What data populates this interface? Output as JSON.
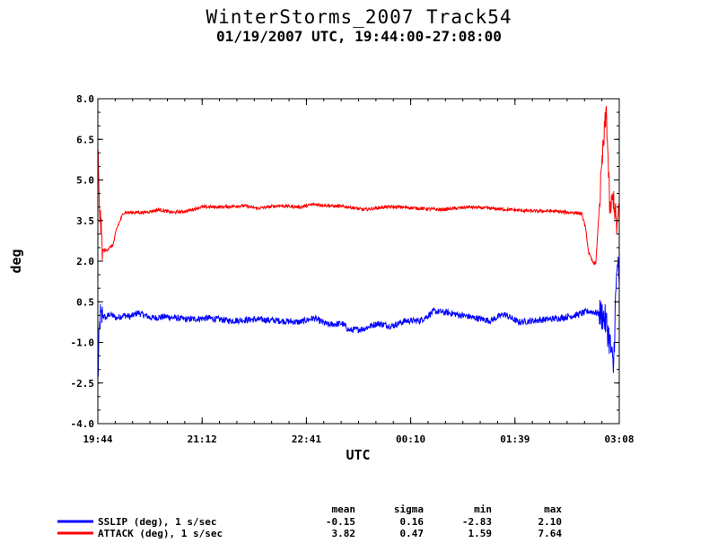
{
  "chart_data": {
    "type": "line",
    "title": "WinterStorms_2007 Track54",
    "subtitle": "01/19/2007 UTC, 19:44:00-27:08:00",
    "xlabel": "UTC",
    "ylabel": "deg",
    "x_range_hours": [
      19.7333,
      27.1333
    ],
    "x_tick_labels": [
      "19:44",
      "21:12",
      "22:41",
      "00:10",
      "01:39",
      "03:08"
    ],
    "ylim": [
      -4.0,
      8.0
    ],
    "y_ticks": [
      "8.0",
      "6.5",
      "5.0",
      "3.5",
      "2.0",
      "0.5",
      "-1.0",
      "-2.5",
      "-4.0"
    ],
    "grid": false,
    "legend_position": "bottom-left",
    "stats_headers": [
      "mean",
      "sigma",
      "min",
      "max"
    ],
    "series": [
      {
        "name": "SSLIP (deg), 1 s/sec",
        "color": "#0000ff",
        "stats": [
          "-0.15",
          "0.16",
          "-2.83",
          "2.10"
        ],
        "x_hours": [
          19.733,
          19.75,
          19.767,
          19.78,
          19.8,
          19.85,
          19.9,
          20.0,
          20.1,
          20.2,
          20.3,
          20.5,
          20.7,
          21.0,
          21.3,
          21.6,
          22.0,
          22.3,
          22.6,
          22.8,
          23.0,
          23.2,
          23.3,
          23.5,
          23.7,
          23.9,
          24.1,
          24.3,
          24.4,
          24.5,
          24.7,
          24.9,
          25.1,
          25.3,
          25.5,
          25.7,
          25.9,
          26.1,
          26.3,
          26.5,
          26.7,
          26.8,
          26.9,
          26.95,
          27.0,
          27.05,
          27.08,
          27.11,
          27.133
        ],
        "values": [
          -2.5,
          -1.0,
          0.0,
          -0.2,
          0.0,
          -0.1,
          0.05,
          -0.1,
          0.0,
          -0.05,
          0.1,
          -0.1,
          -0.05,
          -0.15,
          -0.1,
          -0.2,
          -0.15,
          -0.2,
          -0.25,
          -0.1,
          -0.35,
          -0.3,
          -0.55,
          -0.5,
          -0.3,
          -0.4,
          -0.2,
          -0.2,
          -0.05,
          0.15,
          0.1,
          0.0,
          -0.1,
          -0.2,
          0.05,
          -0.25,
          -0.2,
          -0.15,
          -0.1,
          0.0,
          0.15,
          0.1,
          0.0,
          -0.3,
          -1.0,
          -2.0,
          0.5,
          2.1,
          0.8
        ]
      },
      {
        "name": "ATTACK (deg), 1 s/sec",
        "color": "#ff0000",
        "stats": [
          "3.82",
          "0.47",
          "1.59",
          "7.64"
        ],
        "x_hours": [
          19.733,
          19.75,
          19.77,
          19.8,
          19.85,
          19.95,
          20.0,
          20.1,
          20.2,
          20.4,
          20.6,
          20.8,
          21.0,
          21.2,
          21.5,
          21.8,
          22.0,
          22.3,
          22.6,
          22.8,
          23.0,
          23.3,
          23.5,
          23.8,
          24.0,
          24.3,
          24.6,
          24.8,
          25.0,
          25.3,
          25.6,
          25.9,
          26.2,
          26.4,
          26.5,
          26.6,
          26.65,
          26.7,
          26.75,
          26.8,
          26.85,
          26.9,
          26.95,
          27.0,
          27.05,
          27.1,
          27.133
        ],
        "values": [
          6.4,
          4.3,
          3.5,
          2.4,
          2.4,
          2.6,
          3.2,
          3.8,
          3.8,
          3.8,
          3.9,
          3.8,
          3.85,
          4.0,
          4.0,
          4.05,
          3.95,
          4.05,
          4.0,
          4.1,
          4.05,
          4.0,
          3.9,
          4.0,
          4.0,
          3.95,
          3.9,
          3.95,
          4.0,
          3.95,
          3.9,
          3.85,
          3.85,
          3.8,
          3.8,
          3.75,
          3.3,
          2.3,
          2.0,
          1.9,
          4.0,
          6.0,
          7.6,
          3.8,
          4.4,
          3.2,
          3.9
        ]
      }
    ]
  }
}
